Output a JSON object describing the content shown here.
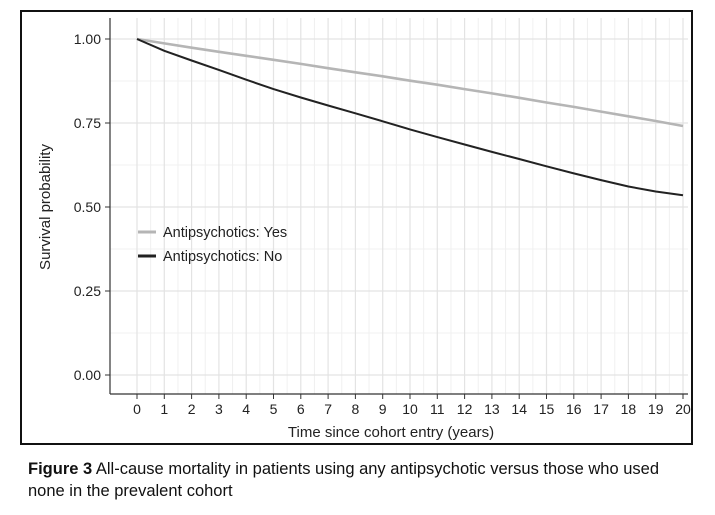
{
  "caption": {
    "label": "Figure 3",
    "text": "All-cause mortality in patients using any antipsychotic versus those who used none in the prevalent cohort"
  },
  "chart_data": {
    "type": "line",
    "title": "",
    "xlabel": "Time since cohort entry (years)",
    "ylabel": "Survival probability",
    "xlim": [
      0,
      20
    ],
    "ylim": [
      0,
      1
    ],
    "x_ticks": [
      0,
      1,
      2,
      3,
      4,
      5,
      6,
      7,
      8,
      9,
      10,
      11,
      12,
      13,
      14,
      15,
      16,
      17,
      18,
      19,
      20
    ],
    "y_ticks": [
      0.0,
      0.25,
      0.5,
      0.75,
      1.0
    ],
    "y_tick_labels": [
      "0.00",
      "0.25",
      "0.50",
      "0.75",
      "1.00"
    ],
    "grid": true,
    "legend_position": "center-left",
    "x": [
      0,
      1,
      2,
      3,
      4,
      5,
      6,
      7,
      8,
      9,
      10,
      11,
      12,
      13,
      14,
      15,
      16,
      17,
      18,
      19,
      20
    ],
    "series": [
      {
        "name": "Antipsychotics: Yes",
        "color": "#b5b5b5",
        "values": [
          1.0,
          0.987,
          0.974,
          0.962,
          0.95,
          0.938,
          0.926,
          0.913,
          0.901,
          0.889,
          0.876,
          0.864,
          0.851,
          0.838,
          0.825,
          0.811,
          0.798,
          0.784,
          0.77,
          0.756,
          0.741
        ]
      },
      {
        "name": "Antipsychotics: No",
        "color": "#222222",
        "values": [
          1.0,
          0.965,
          0.936,
          0.908,
          0.879,
          0.851,
          0.826,
          0.802,
          0.779,
          0.755,
          0.731,
          0.708,
          0.686,
          0.664,
          0.643,
          0.621,
          0.6,
          0.58,
          0.561,
          0.546,
          0.535
        ]
      }
    ]
  }
}
